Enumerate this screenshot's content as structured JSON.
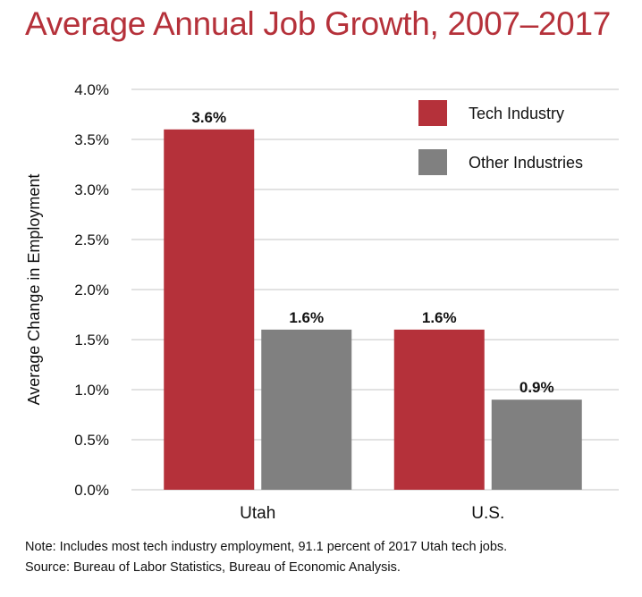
{
  "chart_data": {
    "type": "bar",
    "title": "Average Annual Job Growth, 2007–2017",
    "ylabel": "Average Change in Employment",
    "xlabel": "",
    "categories": [
      "Utah",
      "U.S."
    ],
    "series": [
      {
        "name": "Tech Industry",
        "values": [
          3.6,
          1.6
        ],
        "labels": [
          "3.6%",
          "1.6%"
        ],
        "color": "#b5313a"
      },
      {
        "name": "Other Industries",
        "values": [
          1.6,
          0.9
        ],
        "labels": [
          "1.6%",
          "0.9%"
        ],
        "color": "#808080"
      }
    ],
    "ylim": [
      0,
      4.0
    ],
    "yticks": [
      0,
      0.5,
      1.0,
      1.5,
      2.0,
      2.5,
      3.0,
      3.5,
      4.0
    ],
    "ytick_labels": [
      "0.0%",
      "0.5%",
      "1.0%",
      "1.5%",
      "2.0%",
      "2.5%",
      "3.0%",
      "3.5%",
      "4.0%"
    ],
    "grid": true,
    "grid_color": "#d9d9d9",
    "legend_position": "top-right"
  },
  "notes": {
    "note": "Note: Includes most tech industry employment, 91.1 percent of 2017 Utah tech jobs.",
    "source": "Source: Bureau of Labor Statistics, Bureau of Economic Analysis."
  }
}
